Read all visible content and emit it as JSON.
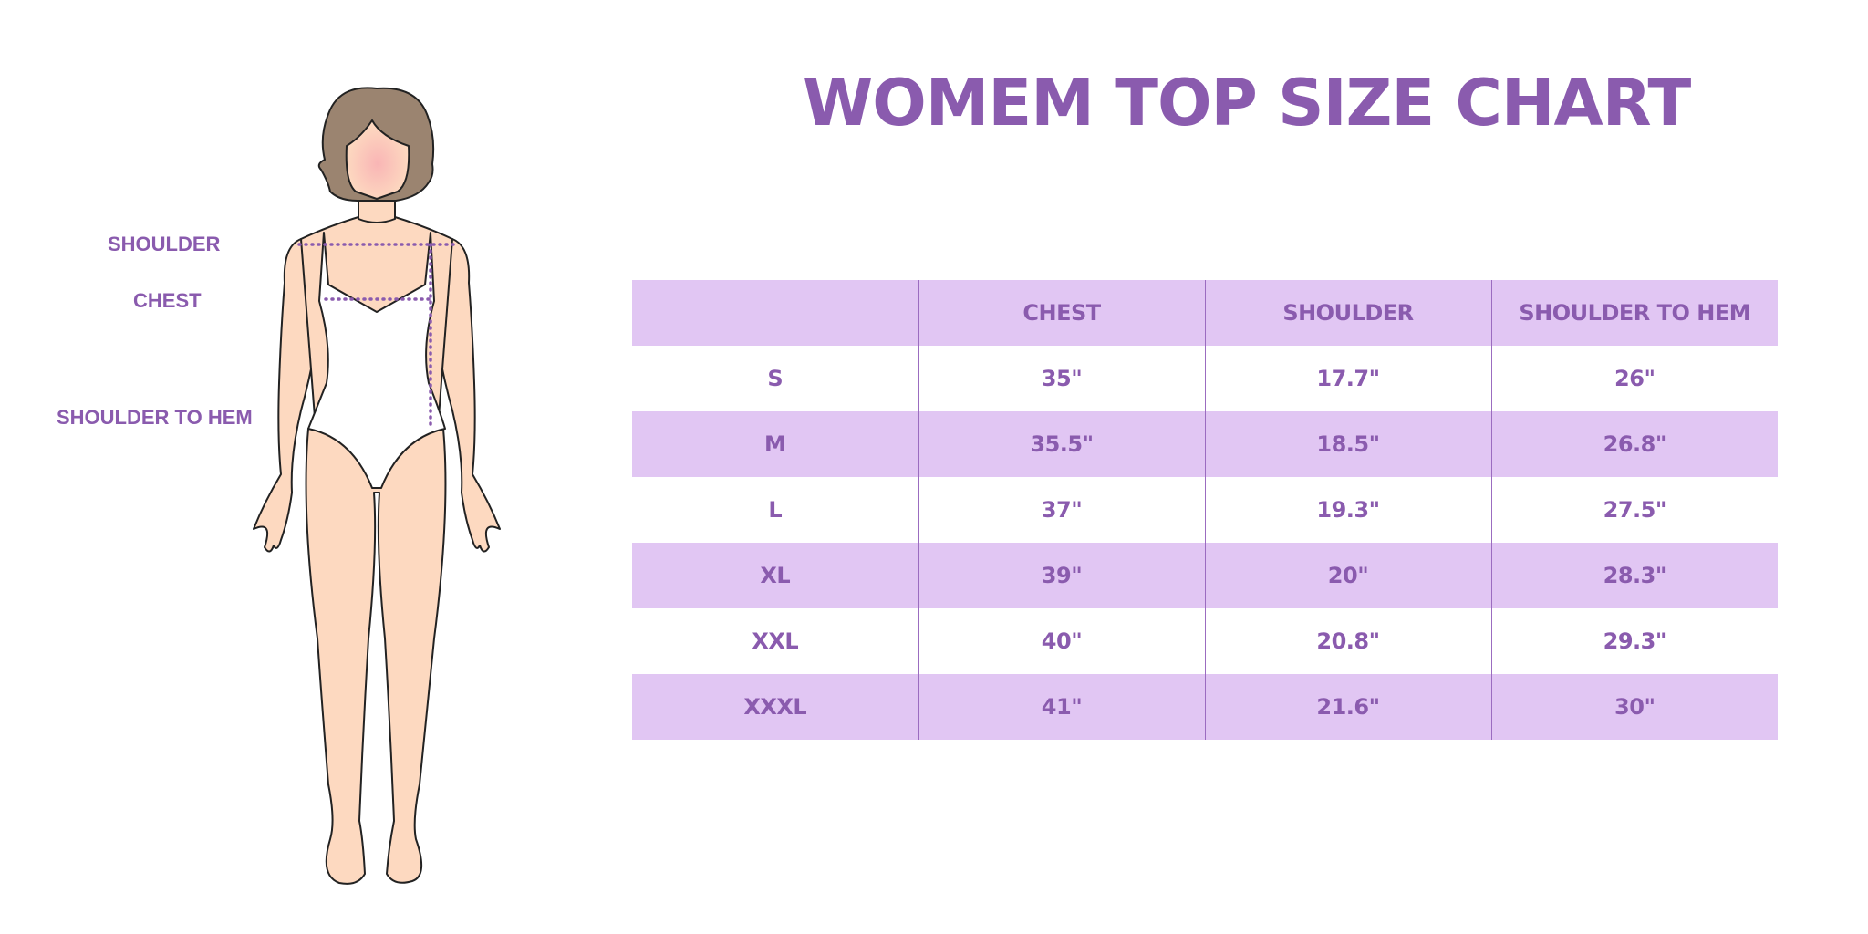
{
  "title": "WOMEM TOP SIZE CHART",
  "measure_labels": {
    "shoulder": "SHOULDER",
    "chest": "CHEST",
    "shoulder_to_hem": "SHOULDER TO HEM"
  },
  "colors": {
    "accent": "#8A5BAE",
    "row_shade": "#E1C6F3",
    "skin": "#FDD9C0",
    "hair": "#9B8470"
  },
  "table": {
    "headers": [
      "",
      "CHEST",
      "SHOULDER",
      "SHOULDER TO HEM"
    ],
    "rows": [
      [
        "S",
        "35\"",
        "17.7\"",
        "26\""
      ],
      [
        "M",
        "35.5\"",
        "18.5\"",
        "26.8\""
      ],
      [
        "L",
        "37\"",
        "19.3\"",
        "27.5\""
      ],
      [
        "XL",
        "39\"",
        "20\"",
        "28.3\""
      ],
      [
        "XXL",
        "40\"",
        "20.8\"",
        "29.3\""
      ],
      [
        "XXXL",
        "41\"",
        "21.6\"",
        "30\""
      ]
    ]
  }
}
